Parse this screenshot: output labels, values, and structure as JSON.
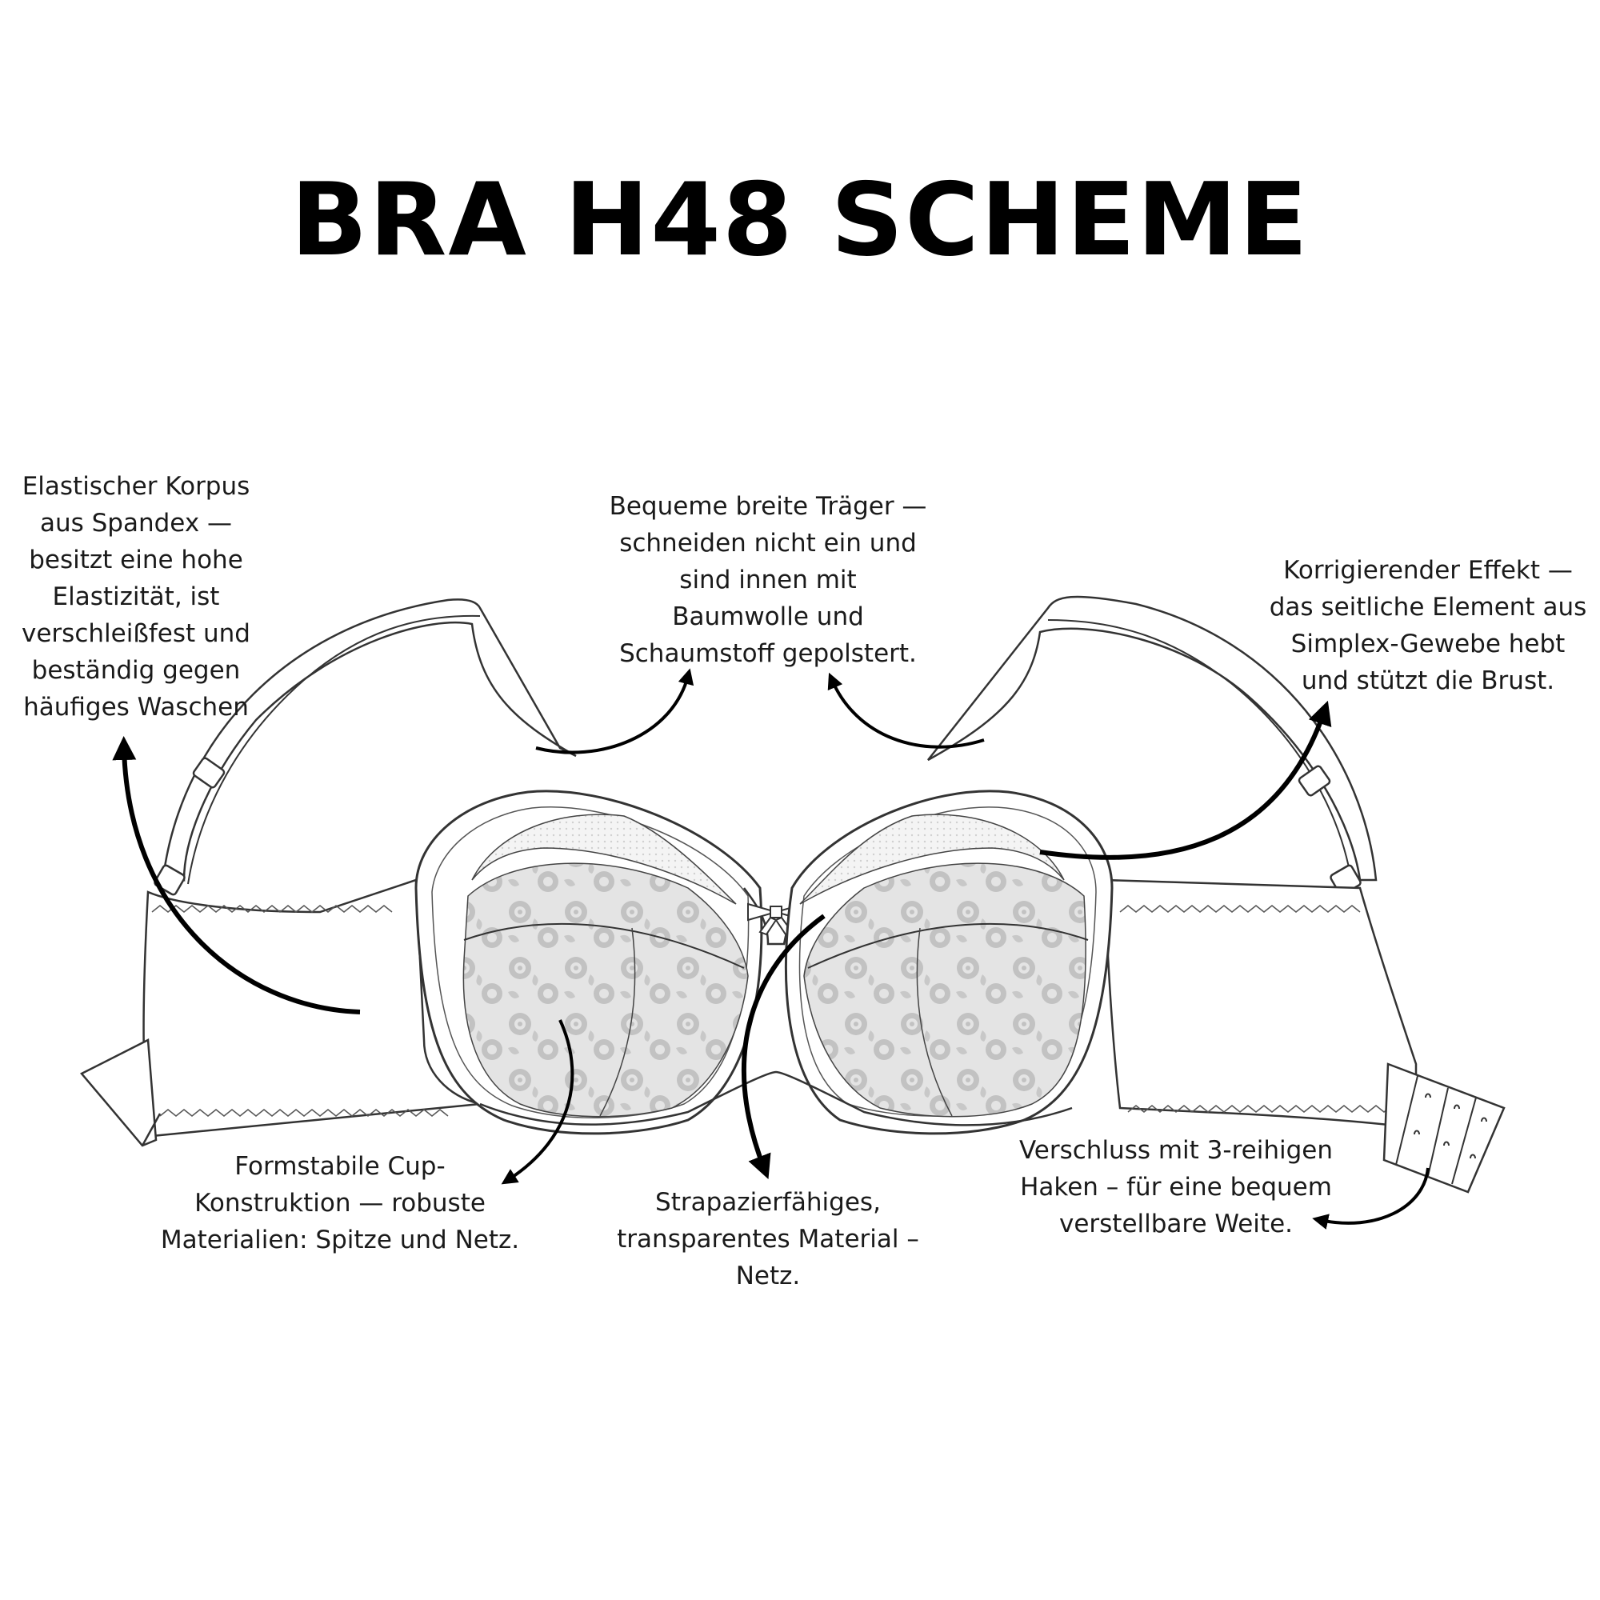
{
  "title": "BRA H48 SCHEME",
  "colors": {
    "text": "#1a1a1a",
    "title": "#000000",
    "outline": "#333333",
    "lace": "#bdbdbd",
    "background": "#ffffff"
  },
  "callouts": {
    "korpus": {
      "lines": [
        "Elastischer Korpus",
        "aus Spandex —",
        "besitzt eine hohe",
        "Elastizität, ist",
        "verschleißfest und",
        "beständig gegen",
        "häufiges Waschen"
      ]
    },
    "traeger": {
      "lines": [
        "Bequeme breite Träger —",
        "schneiden nicht ein und",
        "sind innen mit",
        "Baumwolle und",
        "Schaumstoff gepolstert."
      ]
    },
    "effekt": {
      "lines": [
        "Korrigierender Effekt —",
        "das seitliche Element aus",
        "Simplex-Gewebe hebt",
        "und stützt die Brust."
      ]
    },
    "cup": {
      "lines": [
        "Formstabile Cup-",
        "Konstruktion — robuste",
        "Materialien: Spitze und Netz."
      ]
    },
    "netz": {
      "lines": [
        "Strapazierfähiges,",
        "transparentes Material –",
        "Netz."
      ]
    },
    "verschluss": {
      "lines": [
        "Verschluss mit 3-reihigen",
        "Haken – für eine bequem",
        "verstellbare Weite."
      ]
    }
  }
}
